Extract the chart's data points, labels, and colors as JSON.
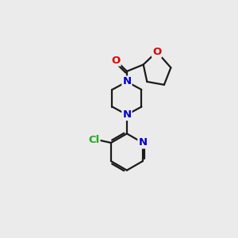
{
  "background_color": "#ebebeb",
  "bond_color": "#1a1a1a",
  "atom_colors": {
    "O": "#dd0000",
    "N": "#0000cc",
    "Cl": "#22aa22",
    "C": "#1a1a1a"
  },
  "figsize": [
    3.0,
    3.0
  ],
  "dpi": 100
}
